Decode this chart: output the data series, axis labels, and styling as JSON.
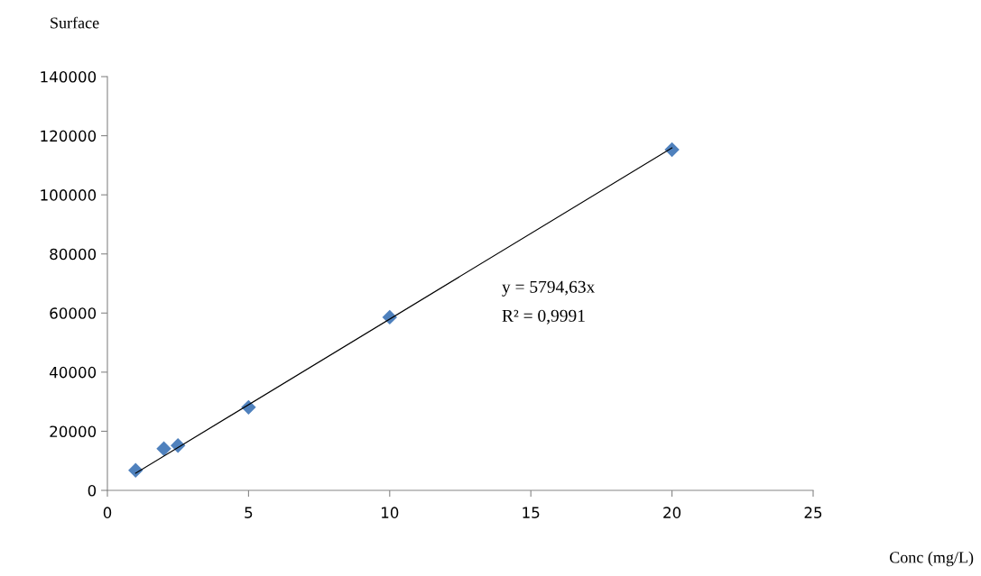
{
  "chart_data": {
    "type": "scatter",
    "xlabel": "Conc (mg/L)",
    "ylabel": "Surface",
    "x": [
      1,
      2,
      2.5,
      5,
      10,
      20
    ],
    "series": [
      {
        "color": "#4f81bd",
        "marker": "diamond",
        "values": [
          6800,
          14100,
          15200,
          28100,
          58600,
          115300
        ]
      },
      {
        "type": "line",
        "color": "#000000",
        "marker": "none",
        "line_style": "solid",
        "x": [
          1,
          20
        ],
        "values": [
          5800,
          115900
        ]
      }
    ],
    "annotations": [
      "y = 5794,63x",
      "R² = 0,9991"
    ],
    "xlim": [
      0,
      25
    ],
    "xticks": [
      0,
      5,
      10,
      15,
      20,
      25
    ],
    "ylim": [
      0,
      140000
    ],
    "yticks": [
      0,
      20000,
      40000,
      60000,
      80000,
      100000,
      120000,
      140000
    ],
    "grid": false,
    "legend": false
  }
}
